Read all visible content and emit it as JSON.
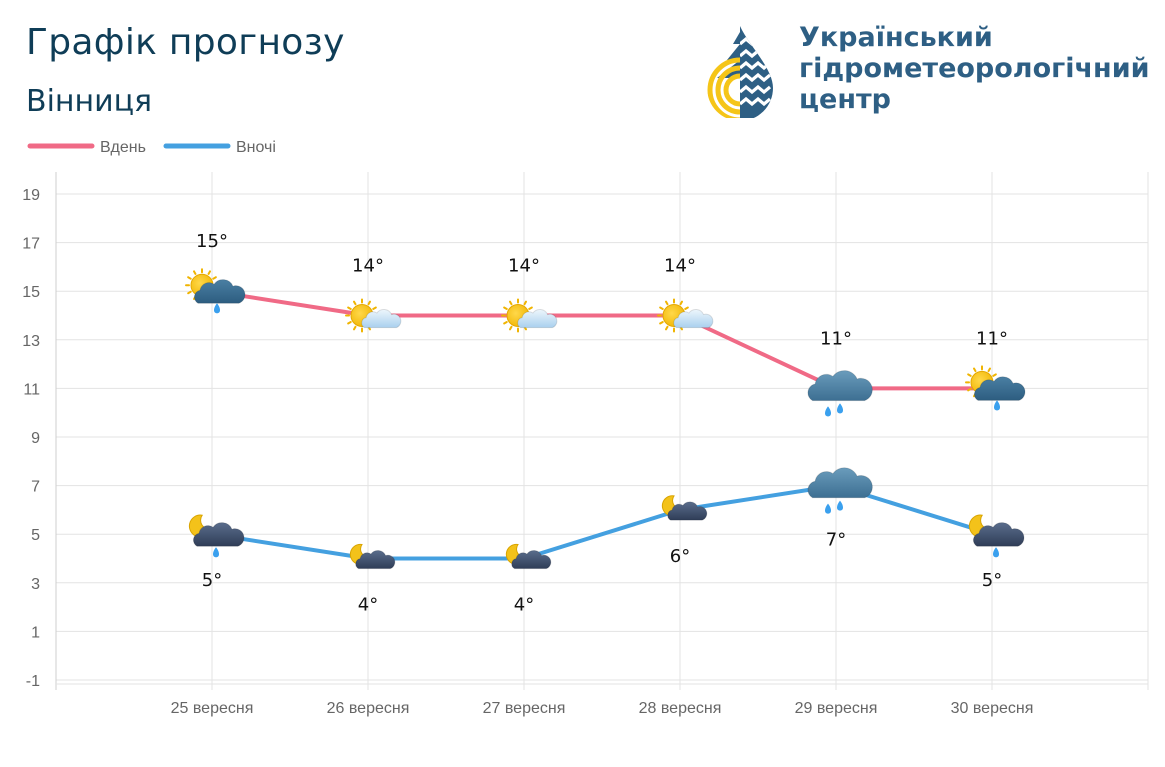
{
  "header": {
    "title": "Графік прогнозу",
    "city": "Вінниця"
  },
  "organization": {
    "name_lines": [
      "Український",
      "гідрометеорологічний",
      "центр"
    ],
    "logo_icon": "drop-logo-icon"
  },
  "colors": {
    "day": "#f06a86",
    "night": "#44a0e0",
    "grid": "#e3e3e3",
    "title": "#0f3d57",
    "org": "#2e5f84"
  },
  "chart_data": {
    "type": "line",
    "categories": [
      "25 вересня",
      "26 вересня",
      "27 вересня",
      "28 вересня",
      "29 вересня",
      "30 вересня"
    ],
    "series": [
      {
        "name": "Вдень",
        "values": [
          15,
          14,
          14,
          14,
          11,
          11
        ],
        "labels": [
          "15°",
          "14°",
          "14°",
          "14°",
          "11°",
          "11°"
        ],
        "icons": [
          "sun-cloud-rain-icon",
          "sun-cloud-icon",
          "sun-cloud-icon",
          "sun-cloud-icon",
          "cloud-rain-icon",
          "sun-cloud-rain-icon"
        ]
      },
      {
        "name": "Вночі",
        "values": [
          5,
          4,
          4,
          6,
          7,
          5
        ],
        "labels": [
          "5°",
          "4°",
          "4°",
          "6°",
          "7°",
          "5°"
        ],
        "icons": [
          "moon-cloud-rain-icon",
          "moon-cloud-icon",
          "moon-cloud-icon",
          "moon-cloud-icon",
          "cloud-rain-icon",
          "moon-cloud-rain-icon"
        ]
      }
    ],
    "y_ticks": [
      "19",
      "17",
      "15",
      "13",
      "11",
      "9",
      "7",
      "5",
      "3",
      "1",
      "-1"
    ],
    "ylim": [
      -1,
      19
    ],
    "grid": true,
    "legend": "top-left"
  }
}
